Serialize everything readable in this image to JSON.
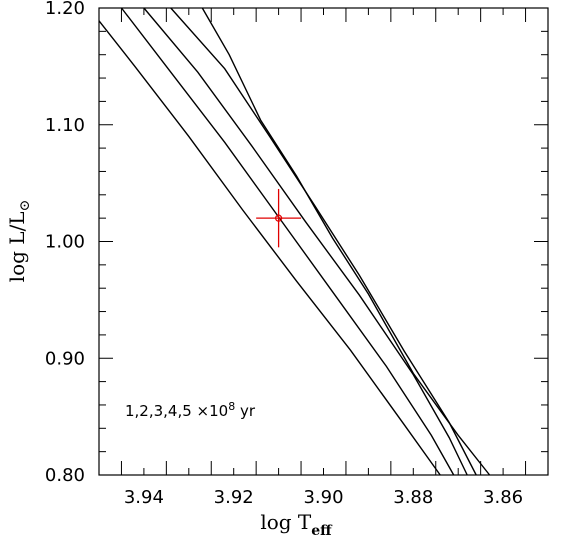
{
  "chart_data": {
    "type": "line",
    "xlabel": "log T",
    "xlabel_sub": "eff",
    "ylabel": "log L/L",
    "ylabel_sub": "⊙",
    "xlim": [
      3.95,
      3.85
    ],
    "ylim": [
      0.8,
      1.2
    ],
    "x_ticks": [
      3.94,
      3.92,
      3.9,
      3.88,
      3.86
    ],
    "x_tick_labels": [
      "3.94",
      "3.92",
      "3.90",
      "3.88",
      "3.86"
    ],
    "y_ticks": [
      0.8,
      0.9,
      1.0,
      1.1,
      1.2
    ],
    "y_tick_labels": [
      "0.80",
      "0.90",
      "1.00",
      "1.10",
      "1.20"
    ],
    "annotation_parts": [
      "1,2,3,4,5 ×10",
      "8",
      " yr"
    ],
    "line_color": "#000000",
    "marker_color": "#e00000",
    "series": [
      {
        "x": [
          3.951,
          3.942,
          3.93,
          3.918,
          3.906,
          3.894,
          3.882,
          3.874
        ],
        "y": [
          1.189,
          1.15,
          1.09,
          1.027,
          0.966,
          0.907,
          0.843,
          0.8
        ]
      },
      {
        "x": [
          3.945,
          3.934,
          3.922,
          3.91,
          3.898,
          3.886,
          3.876,
          3.871
        ],
        "y": [
          1.2,
          1.145,
          1.085,
          1.021,
          0.957,
          0.893,
          0.834,
          0.8
        ]
      },
      {
        "x": [
          3.94,
          3.928,
          3.916,
          3.904,
          3.892,
          3.88,
          3.872,
          3.868
        ],
        "y": [
          1.2,
          1.145,
          1.082,
          1.017,
          0.954,
          0.886,
          0.832,
          0.8
        ]
      },
      {
        "x": [
          3.934,
          3.922,
          3.912,
          3.902,
          3.892,
          3.882,
          3.872,
          3.866
        ],
        "y": [
          1.2,
          1.148,
          1.09,
          1.031,
          0.971,
          0.906,
          0.845,
          0.8
        ]
      },
      {
        "x": [
          3.927,
          3.921,
          3.914,
          3.906,
          3.898,
          3.89,
          3.88,
          3.87,
          3.863
        ],
        "y": [
          1.2,
          1.16,
          1.104,
          1.056,
          1.003,
          0.955,
          0.887,
          0.834,
          0.8
        ]
      }
    ],
    "marker": {
      "x": 3.91,
      "y": 1.02,
      "x_err": 0.005,
      "y_err": 0.025
    }
  }
}
